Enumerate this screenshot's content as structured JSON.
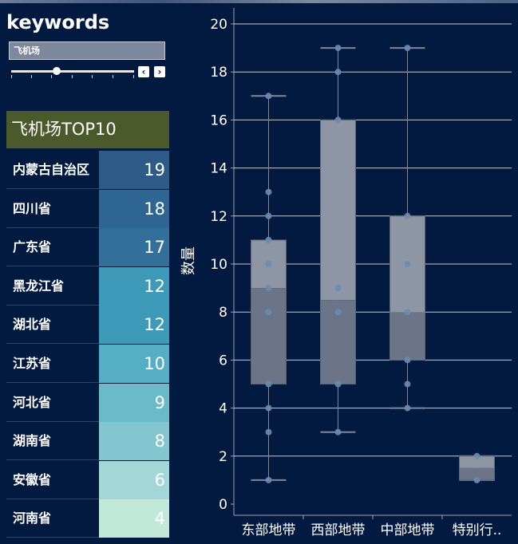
{
  "keywords": {
    "title": "keywords",
    "input_value": "飞机场",
    "prev_label": "‹",
    "next_label": "›",
    "slider_level": 0.37
  },
  "top10": {
    "title": "飞机场TOP10",
    "rows": [
      {
        "province": "内蒙古自治区",
        "value": "19",
        "color": "#2d5a86"
      },
      {
        "province": "四川省",
        "value": "18",
        "color": "#2f6591"
      },
      {
        "province": "广东省",
        "value": "17",
        "color": "#326f9b"
      },
      {
        "province": "黑龙江省",
        "value": "12",
        "color": "#3e9ab8"
      },
      {
        "province": "湖北省",
        "value": "12",
        "color": "#3e9ab8"
      },
      {
        "province": "江苏省",
        "value": "10",
        "color": "#56aec5"
      },
      {
        "province": "河北省",
        "value": "9",
        "color": "#6bbac9"
      },
      {
        "province": "湖南省",
        "value": "8",
        "color": "#83c6cf"
      },
      {
        "province": "安徽省",
        "value": "6",
        "color": "#a3d6d6"
      },
      {
        "province": "河南省",
        "value": "4",
        "color": "#c2e8da"
      }
    ]
  },
  "chart_data": {
    "type": "box",
    "title": "",
    "xlabel": "",
    "ylabel": "数量",
    "ylim": [
      0,
      21
    ],
    "yticks": [
      0,
      2,
      4,
      6,
      8,
      10,
      12,
      14,
      16,
      18,
      20
    ],
    "categories": [
      "东部地带",
      "西部地带",
      "中部地带",
      "特别行.."
    ],
    "boxes": [
      {
        "min": 1,
        "q1": 5,
        "median": 9,
        "q3": 11,
        "max": 17,
        "points": [
          1,
          3,
          4,
          5,
          8,
          9,
          10,
          11,
          12,
          13,
          17
        ]
      },
      {
        "min": 3,
        "q1": 5,
        "median": 8.5,
        "q3": 16,
        "max": 19,
        "points": [
          3,
          5,
          8,
          9,
          16,
          18,
          19
        ]
      },
      {
        "min": 4,
        "q1": 6,
        "median": 8,
        "q3": 12,
        "max": 19,
        "points": [
          4,
          5,
          6,
          8,
          10,
          12,
          19
        ]
      },
      {
        "min": 1,
        "q1": 1,
        "median": 1.5,
        "q3": 2,
        "max": 2,
        "points": [
          1,
          2
        ]
      }
    ],
    "grid": true,
    "colors": {
      "lower_box": "#6c7487",
      "upper_box": "#8e95a4",
      "point": "#6b8bb3",
      "whisker": "#7f8798",
      "grid": "#e6e6e6"
    }
  }
}
